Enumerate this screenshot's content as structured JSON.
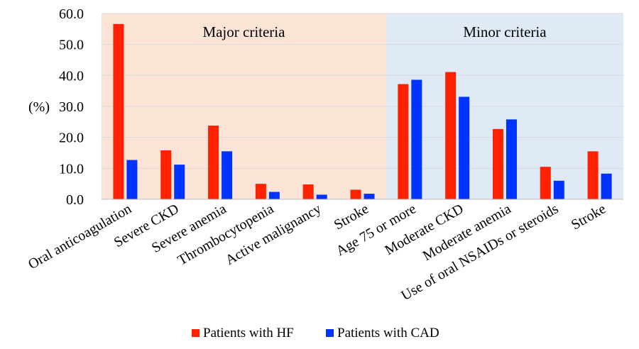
{
  "chart_data": {
    "type": "bar",
    "title": "",
    "xlabel": "",
    "ylabel": "(%)",
    "ylim": [
      0,
      60
    ],
    "yticks": [
      "0.0",
      "10.0",
      "20.0",
      "30.0",
      "40.0",
      "50.0",
      "60.0"
    ],
    "grid": true,
    "categories": [
      "Oral anticoagulation",
      "Severe CKD",
      "Severe anemia",
      "Thrombocytopenia",
      "Active malignancy",
      "Stroke",
      "Age 75 or more",
      "Moderate CKD",
      "Moderate anemia",
      "Use of oral NSAIDs or steroids",
      "Stroke"
    ],
    "series": [
      {
        "name": "Patients with HF",
        "color": "#ff2200",
        "values": [
          56.6,
          15.8,
          23.8,
          5.0,
          4.8,
          3.1,
          37.2,
          41.1,
          22.7,
          10.5,
          15.5
        ]
      },
      {
        "name": "Patients with CAD",
        "color": "#0033ff",
        "values": [
          12.7,
          11.2,
          15.5,
          2.4,
          1.5,
          1.8,
          38.6,
          33.1,
          25.8,
          6.0,
          8.3
        ]
      }
    ],
    "regions": [
      {
        "label": "Major criteria",
        "from": 0,
        "to": 5,
        "color": "#fbe3d6"
      },
      {
        "label": "Minor criteria",
        "from": 6,
        "to": 10,
        "color": "#dfeaf6"
      }
    ],
    "legend_position": "bottom"
  }
}
